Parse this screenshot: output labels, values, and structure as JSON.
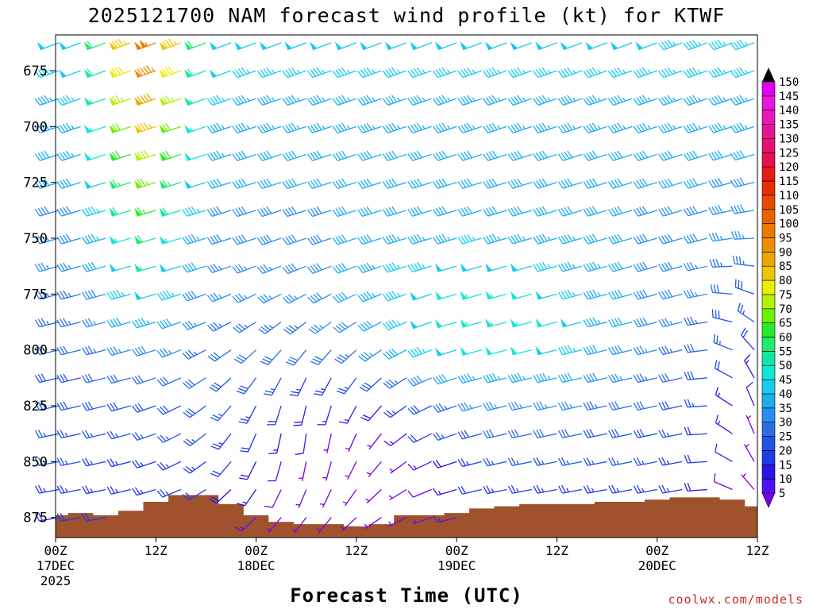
{
  "chart_data": {
    "type": "wind-profile",
    "title": "2025121700 NAM forecast wind profile (kt) for KTWF",
    "xlabel": "Forecast Time (UTC)",
    "credit": "coolwx.com/models",
    "y_ticks": [
      675,
      700,
      725,
      750,
      775,
      800,
      825,
      850,
      875
    ],
    "ylim": [
      884,
      659
    ],
    "pressure_levels": [
      875,
      862.5,
      850,
      837.5,
      825,
      812.5,
      800,
      787.5,
      775,
      762.5,
      750,
      737.5,
      725,
      712.5,
      700,
      687.5,
      675,
      662.5
    ],
    "forecast_hours": [
      0,
      3,
      6,
      9,
      12,
      15,
      18,
      21,
      24,
      27,
      30,
      33,
      36,
      39,
      42,
      45,
      48,
      51,
      54,
      57,
      60,
      63,
      66,
      69,
      72,
      75,
      78,
      81,
      84
    ],
    "x_ticks": [
      {
        "hour": 0,
        "label": "00Z",
        "date": "17DEC",
        "year": "2025"
      },
      {
        "hour": 12,
        "label": "12Z",
        "date": "",
        "year": ""
      },
      {
        "hour": 24,
        "label": "00Z",
        "date": "18DEC",
        "year": ""
      },
      {
        "hour": 36,
        "label": "12Z",
        "date": "",
        "year": ""
      },
      {
        "hour": 48,
        "label": "00Z",
        "date": "19DEC",
        "year": ""
      },
      {
        "hour": 60,
        "label": "12Z",
        "date": "",
        "year": ""
      },
      {
        "hour": 72,
        "label": "00Z",
        "date": "20DEC",
        "year": ""
      },
      {
        "hour": 84,
        "label": "12Z",
        "date": "",
        "year": ""
      }
    ],
    "xlim": [
      0,
      84
    ],
    "surface_pressure": {
      "hours": [
        0,
        3,
        6,
        9,
        12,
        15,
        18,
        21,
        24,
        27,
        30,
        33,
        36,
        39,
        42,
        45,
        48,
        51,
        54,
        57,
        60,
        63,
        66,
        69,
        72,
        75,
        78,
        81,
        84
      ],
      "pressure": [
        874,
        873,
        874,
        872,
        868,
        865,
        865,
        869,
        874,
        877,
        878,
        878,
        879,
        878,
        874,
        874,
        873,
        871,
        870,
        869,
        869,
        869,
        868,
        868,
        867,
        866,
        866,
        867,
        870
      ]
    },
    "colorbar": {
      "levels": [
        5,
        10,
        15,
        20,
        25,
        30,
        35,
        40,
        45,
        50,
        55,
        60,
        65,
        70,
        75,
        80,
        85,
        90,
        95,
        100,
        105,
        110,
        115,
        120,
        125,
        130,
        135,
        140,
        145,
        150
      ],
      "colors": [
        "#7a00e6",
        "#5010f0",
        "#2a14e6",
        "#1f3ae6",
        "#1f55e6",
        "#2a6ee6",
        "#2a8ef0",
        "#1aaef0",
        "#16ccef",
        "#12e6d8",
        "#12e6a6",
        "#1eec6e",
        "#28ec28",
        "#6ef000",
        "#b4f000",
        "#ecec00",
        "#ecc800",
        "#eca800",
        "#ec9000",
        "#ec7a00",
        "#e66200",
        "#e64a00",
        "#e63000",
        "#e61a1a",
        "#e6104a",
        "#e61070",
        "#e61494",
        "#e618b8",
        "#e618dc",
        "#e600f0"
      ]
    },
    "wind_barb_note": "barbs drawn per level and time from speed (kt) and direction (deg)"
  }
}
